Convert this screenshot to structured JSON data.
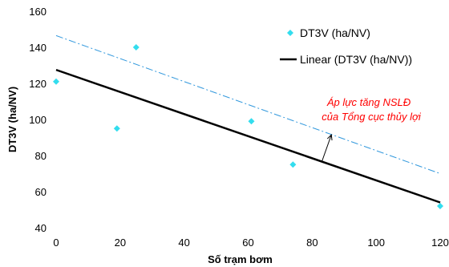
{
  "chart_data": {
    "type": "scatter",
    "xlabel": "Số trạm bơm",
    "ylabel": "DT3V (ha/NV)",
    "xlim": [
      0,
      120
    ],
    "ylim": [
      40,
      160
    ],
    "xticks": [
      0,
      20,
      40,
      60,
      80,
      100,
      120
    ],
    "yticks": [
      40,
      60,
      80,
      100,
      120,
      140,
      160
    ],
    "grid": false,
    "legend_position": "top-right",
    "series": [
      {
        "name": "DT3V (ha/NV)",
        "kind": "scatter",
        "color": "#33ddee",
        "points": [
          [
            0,
            121
          ],
          [
            19,
            95
          ],
          [
            25,
            140
          ],
          [
            61,
            99
          ],
          [
            74,
            75
          ],
          [
            120,
            52
          ]
        ]
      },
      {
        "name": "Linear (DT3V (ha/NV))",
        "kind": "line",
        "color": "#000000",
        "points": [
          [
            0,
            127.5
          ],
          [
            120,
            54
          ]
        ]
      },
      {
        "kind": "dash-dot-line",
        "color": "#3399dd",
        "points": [
          [
            0,
            146.5
          ],
          [
            120,
            70
          ]
        ]
      }
    ],
    "annotation": {
      "lines": [
        "Áp lực tăng NSLĐ",
        "của Tổng cục thủy lợi"
      ],
      "color": "#ff0000",
      "arrow_from": [
        83,
        76.5
      ],
      "arrow_to": [
        86,
        91.5
      ]
    }
  }
}
